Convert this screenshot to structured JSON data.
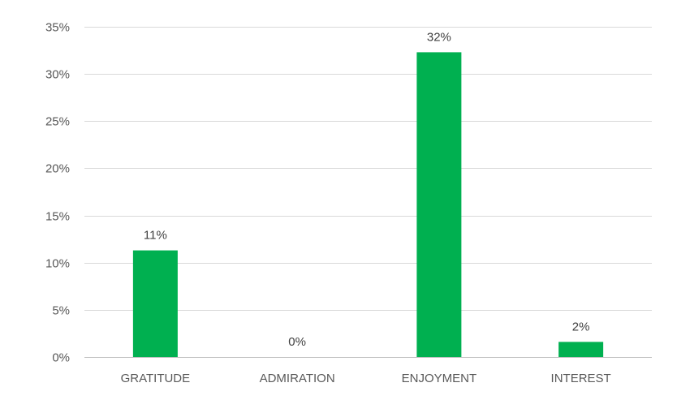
{
  "chart_data": {
    "type": "bar",
    "categories": [
      "GRATITUDE",
      "ADMIRATION",
      "ENJOYMENT",
      "INTEREST"
    ],
    "values": [
      0.113,
      0.0,
      0.323,
      0.016
    ],
    "data_labels": [
      "11%",
      "0%",
      "32%",
      "2%"
    ],
    "ylim": [
      0,
      0.35
    ],
    "yticks": [
      0,
      0.05,
      0.1,
      0.15,
      0.2,
      0.25,
      0.3,
      0.35
    ],
    "ytick_labels": [
      "0%",
      "5%",
      "10%",
      "15%",
      "20%",
      "25%",
      "30%",
      "35%"
    ],
    "grid": true,
    "legend": "none",
    "bar_color": "#00b050"
  }
}
